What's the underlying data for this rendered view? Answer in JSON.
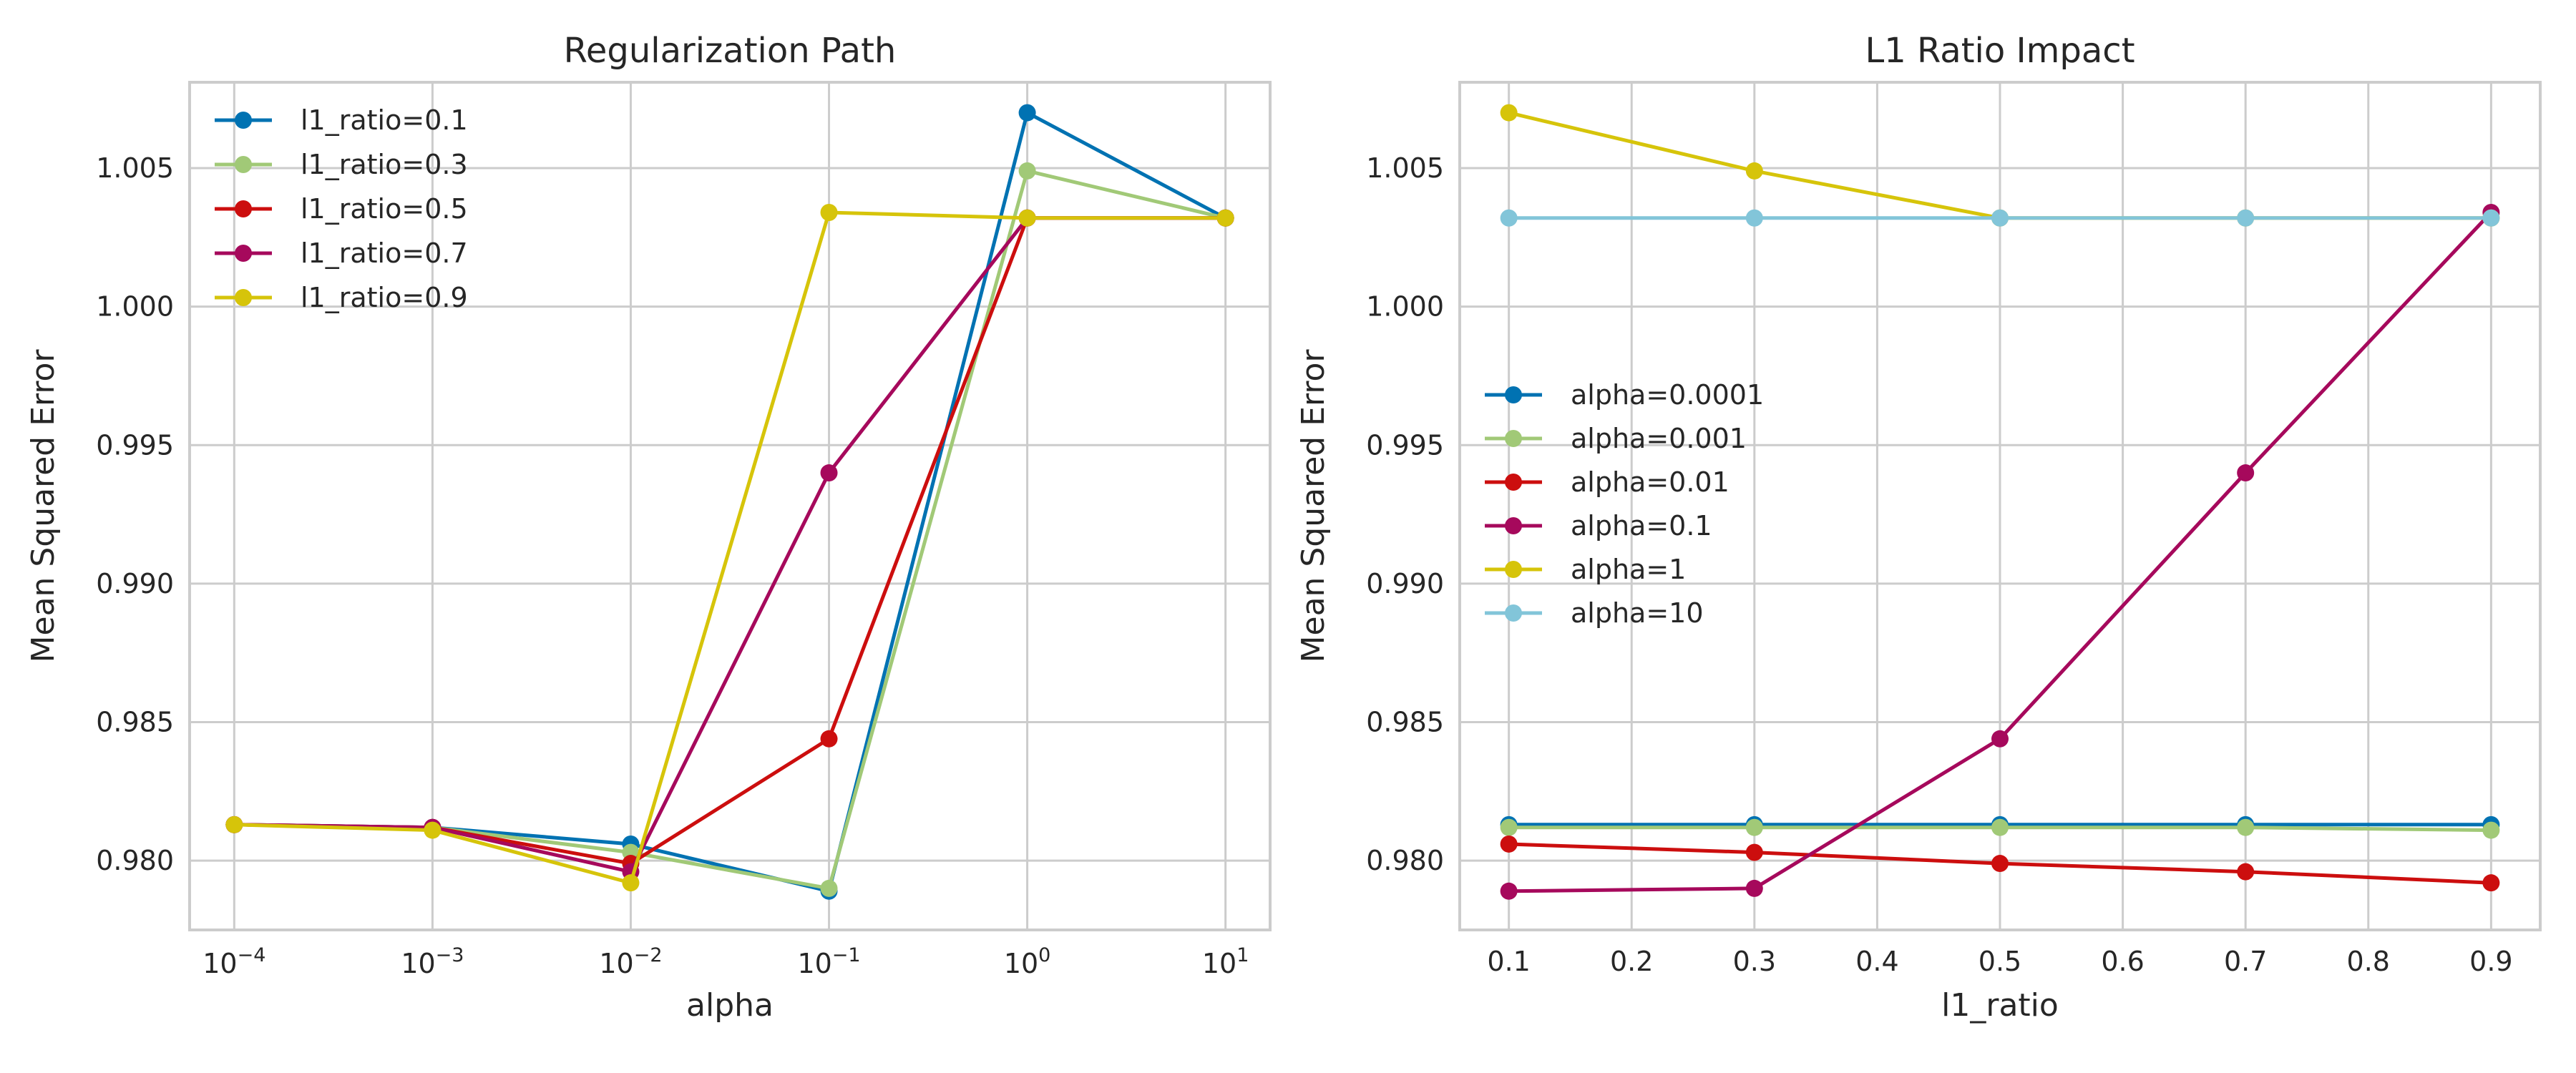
{
  "chart_data": [
    {
      "type": "line",
      "title": "Regularization Path",
      "xlabel": "alpha",
      "ylabel": "Mean Squared Error",
      "xscale": "log",
      "x": [
        0.0001,
        0.001,
        0.01,
        0.1,
        1,
        10
      ],
      "x_tick_labels": [
        {
          "value": 0.0001,
          "base": "10",
          "exp": "−4"
        },
        {
          "value": 0.001,
          "base": "10",
          "exp": "−3"
        },
        {
          "value": 0.01,
          "base": "10",
          "exp": "−2"
        },
        {
          "value": 0.1,
          "base": "10",
          "exp": "−1"
        },
        {
          "value": 1,
          "base": "10",
          "exp": "0"
        },
        {
          "value": 10,
          "base": "10",
          "exp": "1"
        }
      ],
      "ylim": [
        0.9775,
        1.0081
      ],
      "yticks": [
        0.98,
        0.985,
        0.99,
        0.995,
        1.0,
        1.005
      ],
      "y_tick_labels": [
        "0.980",
        "0.985",
        "0.990",
        "0.995",
        "1.000",
        "1.005"
      ],
      "grid": true,
      "legend_position": "top-left",
      "series": [
        {
          "name": "l1_ratio=0.1",
          "color": "#0072b2",
          "values": [
            0.9813,
            0.9812,
            0.9806,
            0.9789,
            1.007,
            1.0032
          ]
        },
        {
          "name": "l1_ratio=0.3",
          "color": "#a1c977",
          "values": [
            0.9813,
            0.9812,
            0.9803,
            0.979,
            1.0049,
            1.0032
          ]
        },
        {
          "name": "l1_ratio=0.5",
          "color": "#cc0e0e",
          "values": [
            0.9813,
            0.9812,
            0.9799,
            0.9844,
            1.0032,
            1.0032
          ]
        },
        {
          "name": "l1_ratio=0.7",
          "color": "#a6095c",
          "values": [
            0.9813,
            0.9812,
            0.9796,
            0.994,
            1.0032,
            1.0032
          ]
        },
        {
          "name": "l1_ratio=0.9",
          "color": "#d6c40a",
          "values": [
            0.9813,
            0.9811,
            0.9792,
            1.0034,
            1.0032,
            1.0032
          ]
        }
      ]
    },
    {
      "type": "line",
      "title": "L1 Ratio Impact",
      "xlabel": "l1_ratio",
      "ylabel": "Mean Squared Error",
      "xscale": "linear",
      "x": [
        0.1,
        0.3,
        0.5,
        0.7,
        0.9
      ],
      "xlim": [
        0.06,
        0.94
      ],
      "xticks": [
        0.1,
        0.2,
        0.3,
        0.4,
        0.5,
        0.6,
        0.7,
        0.8,
        0.9
      ],
      "x_tick_labels": [
        "0.1",
        "0.2",
        "0.3",
        "0.4",
        "0.5",
        "0.6",
        "0.7",
        "0.8",
        "0.9"
      ],
      "ylim": [
        0.9775,
        1.0081
      ],
      "yticks": [
        0.98,
        0.985,
        0.99,
        0.995,
        1.0,
        1.005
      ],
      "y_tick_labels": [
        "0.980",
        "0.985",
        "0.990",
        "0.995",
        "1.000",
        "1.005"
      ],
      "grid": true,
      "legend_position": "center-left",
      "series": [
        {
          "name": "alpha=0.0001",
          "color": "#0072b2",
          "values": [
            0.9813,
            0.9813,
            0.9813,
            0.9813,
            0.9813
          ]
        },
        {
          "name": "alpha=0.001",
          "color": "#a1c977",
          "values": [
            0.9812,
            0.9812,
            0.9812,
            0.9812,
            0.9811
          ]
        },
        {
          "name": "alpha=0.01",
          "color": "#cc0e0e",
          "values": [
            0.9806,
            0.9803,
            0.9799,
            0.9796,
            0.9792
          ]
        },
        {
          "name": "alpha=0.1",
          "color": "#a6095c",
          "values": [
            0.9789,
            0.979,
            0.9844,
            0.994,
            1.0034
          ]
        },
        {
          "name": "alpha=1",
          "color": "#d6c40a",
          "values": [
            1.007,
            1.0049,
            1.0032,
            1.0032,
            1.0032
          ]
        },
        {
          "name": "alpha=10",
          "color": "#82c5d9",
          "values": [
            1.0032,
            1.0032,
            1.0032,
            1.0032,
            1.0032
          ]
        }
      ]
    }
  ]
}
